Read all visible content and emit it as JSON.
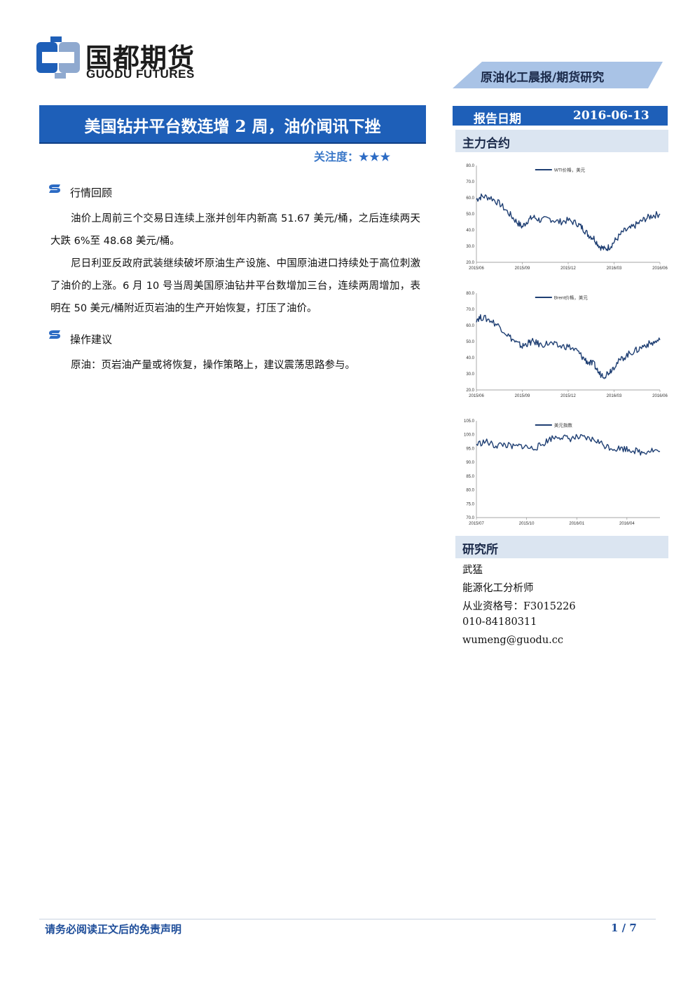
{
  "header": {
    "logo_cn": "国都期货",
    "logo_en": "GUODU FUTURES",
    "report_type": "原油化工晨报/期货研究"
  },
  "title": {
    "text": "美国钻井平台数连增 2 周，油价闻讯下挫",
    "attention_label": "关注度：",
    "attention_stars": 3
  },
  "sections": [
    {
      "heading": "行情回顾",
      "paragraphs": [
        "油价上周前三个交易日连续上涨并创年内新高 51.67 美元/桶，之后连续两天大跌 6%至 48.68 美元/桶。",
        "尼日利亚反政府武装继续破坏原油生产设施、中国原油进口持续处于高位刺激了油价的上涨。6 月 10 号当周美国原油钻井平台数增加三台，连续两周增加，表明在 50 美元/桶附近页岩油的生产开始恢复，打压了油价。"
      ]
    },
    {
      "heading": "操作建议",
      "paragraphs": [
        "原油：页岩油产量或将恢复，操作策略上，建议震荡思路参与。"
      ]
    }
  ],
  "sidebar": {
    "date_label": "报告日期",
    "date_value": "2016-06-13",
    "contracts_heading": "主力合约",
    "research_heading": "研究所",
    "analyst": {
      "name": "武猛",
      "role": "能源化工分析师",
      "license": "从业资格号：F3015226",
      "phone": "010-84180311",
      "email": "wumeng@guodu.cc"
    }
  },
  "footer": {
    "disclaimer": "请务必阅读正文后的免责声明",
    "page": "1 / 7"
  },
  "colors": {
    "brand_blue": "#1e5fb8",
    "line_navy": "#1f3f73",
    "light_band": "#dbe5f1",
    "tab_blue": "#a9c3e6"
  },
  "chart_data": [
    {
      "type": "line",
      "legend": "WTI价格，美元",
      "x_ticks": [
        "2015/06",
        "2015/09",
        "2015/12",
        "2016/03",
        "2016/06"
      ],
      "y_ticks": [
        "20.0",
        "30.0",
        "40.0",
        "50.0",
        "60.0",
        "70.0",
        "80.0"
      ],
      "ylim": [
        20,
        80
      ],
      "x": [
        0,
        0.03,
        0.08,
        0.13,
        0.18,
        0.22,
        0.25,
        0.28,
        0.31,
        0.35,
        0.4,
        0.45,
        0.5,
        0.55,
        0.58,
        0.61,
        0.64,
        0.67,
        0.7,
        0.73,
        0.76,
        0.8,
        0.84,
        0.88,
        0.92,
        0.96,
        1.0
      ],
      "values": [
        59,
        61,
        60,
        56,
        50,
        45,
        42,
        46,
        48,
        46,
        47,
        45,
        46,
        44,
        41,
        37,
        35,
        30,
        28,
        30,
        34,
        39,
        41,
        44,
        47,
        49,
        50
      ]
    },
    {
      "type": "line",
      "legend": "Brent价格，美元",
      "x_ticks": [
        "2015/06",
        "2015/09",
        "2015/12",
        "2016/03",
        "2016/06"
      ],
      "y_ticks": [
        "20.0",
        "30.0",
        "40.0",
        "50.0",
        "60.0",
        "70.0",
        "80.0"
      ],
      "ylim": [
        20,
        80
      ],
      "x": [
        0,
        0.03,
        0.08,
        0.13,
        0.18,
        0.22,
        0.25,
        0.28,
        0.31,
        0.35,
        0.4,
        0.45,
        0.5,
        0.55,
        0.58,
        0.61,
        0.64,
        0.67,
        0.7,
        0.73,
        0.76,
        0.8,
        0.84,
        0.88,
        0.92,
        0.96,
        1.0
      ],
      "values": [
        64,
        65,
        63,
        59,
        53,
        49,
        47,
        49,
        50,
        48,
        49,
        47,
        47,
        44,
        40,
        37,
        36,
        30,
        29,
        32,
        36,
        40,
        43,
        45,
        48,
        49,
        51
      ]
    },
    {
      "type": "line",
      "legend": "美元指数",
      "x_ticks": [
        "2015/07",
        "2015/10",
        "2016/01",
        "2016/04"
      ],
      "y_ticks": [
        "70.0",
        "75.0",
        "80.0",
        "85.0",
        "90.0",
        "95.0",
        "100.0",
        "105.0"
      ],
      "ylim": [
        70,
        105
      ],
      "x": [
        0,
        0.05,
        0.1,
        0.15,
        0.2,
        0.25,
        0.3,
        0.35,
        0.4,
        0.45,
        0.5,
        0.55,
        0.6,
        0.65,
        0.7,
        0.75,
        0.8,
        0.85,
        0.9,
        0.95,
        1.0
      ],
      "values": [
        96.5,
        97.5,
        96,
        96.5,
        95.5,
        96,
        95,
        96,
        98.5,
        99.5,
        98.5,
        99,
        98.5,
        98,
        96,
        95,
        95,
        94.5,
        93.5,
        94.5,
        94
      ]
    }
  ]
}
